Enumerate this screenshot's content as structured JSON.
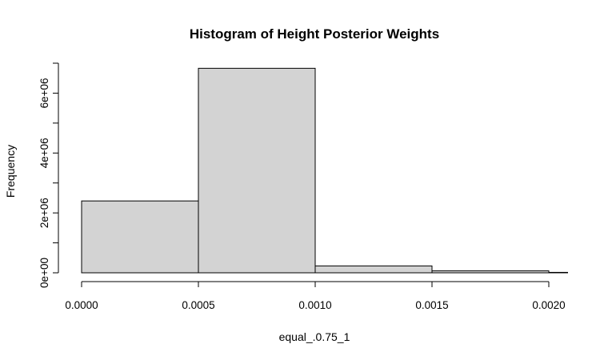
{
  "chart_data": {
    "type": "histogram",
    "title": "Histogram of Height Posterior Weights",
    "xlabel": "equal_.0.75_1",
    "ylabel": "Frequency",
    "bins": [
      {
        "start": 0.0,
        "end": 0.0005,
        "count": 2400000
      },
      {
        "start": 0.0005,
        "end": 0.001,
        "count": 6830000
      },
      {
        "start": 0.001,
        "end": 0.0015,
        "count": 230000
      },
      {
        "start": 0.0015,
        "end": 0.002,
        "count": 65000
      },
      {
        "start": 0.002,
        "end": 0.0025,
        "count": 15000
      }
    ],
    "xlim": [
      0,
      0.00209
    ],
    "ylim": [
      0,
      7000000
    ],
    "x_ticks": [
      {
        "value": 0.0,
        "label": "0.0000"
      },
      {
        "value": 0.0005,
        "label": "0.0005"
      },
      {
        "value": 0.001,
        "label": "0.0010"
      },
      {
        "value": 0.0015,
        "label": "0.0015"
      },
      {
        "value": 0.002,
        "label": "0.0020"
      }
    ],
    "y_ticks_major": [
      {
        "value": 0,
        "label": "0e+00"
      },
      {
        "value": 2000000,
        "label": "2e+06"
      },
      {
        "value": 4000000,
        "label": "4e+06"
      },
      {
        "value": 6000000,
        "label": "6e+06"
      }
    ],
    "y_ticks_minor": [
      1000000,
      3000000,
      5000000,
      7000000
    ],
    "grid": false,
    "legend": "none"
  }
}
